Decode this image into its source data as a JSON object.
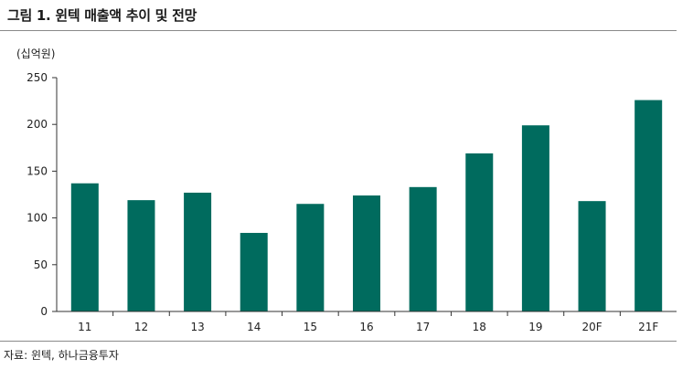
{
  "figure": {
    "title": "그림 1. 윈텍 매출액 추이 및 전망",
    "unit": "(십억원)",
    "source": "자료: 윈텍, 하나금융투자"
  },
  "colors": {
    "bar": "#006b5e",
    "axis": "#333333"
  },
  "chart_data": {
    "type": "bar",
    "title": "그림 1. 윈텍 매출액 추이 및 전망",
    "ylabel": "(십억원)",
    "xlabel": "",
    "categories": [
      "11",
      "12",
      "13",
      "14",
      "15",
      "16",
      "17",
      "18",
      "19",
      "20F",
      "21F"
    ],
    "series": [
      {
        "values": [
          137,
          119,
          127,
          84,
          115,
          124,
          133,
          169,
          199,
          118,
          226
        ]
      }
    ],
    "ylim": [
      0,
      250
    ],
    "yticks": [
      0,
      50,
      100,
      150,
      200,
      250
    ],
    "grid": false,
    "legend": "none"
  }
}
